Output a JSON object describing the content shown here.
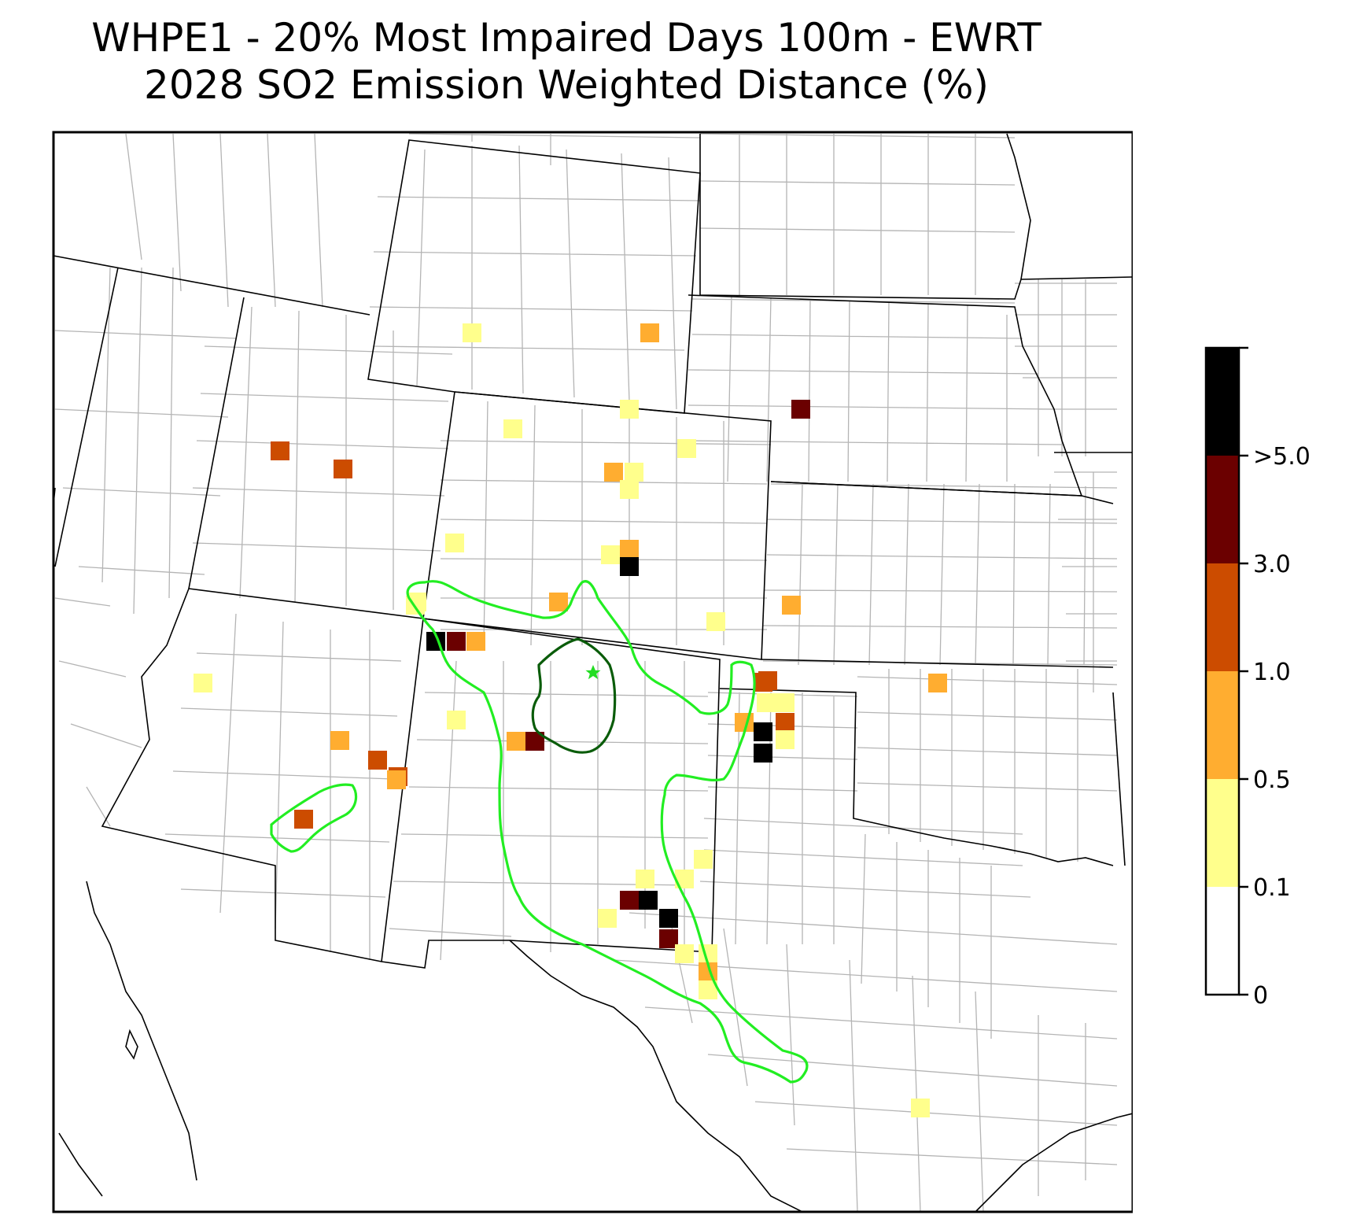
{
  "title": {
    "line1": "WHPE1 - 20% Most Impaired Days 100m - EWRT",
    "line2": "2028 SO2 Emission Weighted Distance (%)"
  },
  "colorbar": {
    "bins": [
      {
        "label": "0",
        "color": "#ffffff"
      },
      {
        "label": "0.1",
        "color": "#ffff8c"
      },
      {
        "label": "0.5",
        "color": "#ffad30"
      },
      {
        "label": "1.0",
        "color": "#cc4c00"
      },
      {
        "label": "3.0",
        "color": "#6b0000"
      },
      {
        "label": ">5.0",
        "color": "#000000"
      }
    ]
  },
  "site_marker": {
    "symbol": "star",
    "color": "#22dd22"
  },
  "contours": {
    "outer_color": "#22ee22",
    "inner_color": "#0a5c0a"
  },
  "cells": [
    {
      "level": 1
    },
    {
      "level": 2
    },
    {
      "level": 1
    },
    {
      "level": 1
    },
    {
      "level": 1
    },
    {
      "level": 2
    },
    {
      "level": 1
    },
    {
      "level": 1
    },
    {
      "level": 4
    },
    {
      "level": 3
    },
    {
      "level": 3
    },
    {
      "level": 1
    },
    {
      "level": 2
    },
    {
      "level": 5
    },
    {
      "level": 1
    },
    {
      "level": 1
    },
    {
      "level": 2
    },
    {
      "level": 1
    },
    {
      "level": 2
    },
    {
      "level": 1
    },
    {
      "level": 5
    },
    {
      "level": 4
    },
    {
      "level": 2
    },
    {
      "level": 1
    },
    {
      "level": 3
    },
    {
      "level": 1
    },
    {
      "level": 2
    },
    {
      "level": 4
    },
    {
      "level": 2
    },
    {
      "level": 3
    },
    {
      "level": 3
    },
    {
      "level": 2
    },
    {
      "level": 3
    },
    {
      "level": 1
    },
    {
      "level": 1
    },
    {
      "level": 2
    },
    {
      "level": 3
    },
    {
      "level": 5
    },
    {
      "level": 5
    },
    {
      "level": 1
    },
    {
      "level": 2
    },
    {
      "level": 1
    },
    {
      "level": 1
    },
    {
      "level": 1
    },
    {
      "level": 4
    },
    {
      "level": 5
    },
    {
      "level": 1
    },
    {
      "level": 5
    },
    {
      "level": 4
    },
    {
      "level": 1
    },
    {
      "level": 1
    },
    {
      "level": 2
    },
    {
      "level": 1
    },
    {
      "level": 3
    },
    {
      "level": 1
    }
  ]
}
